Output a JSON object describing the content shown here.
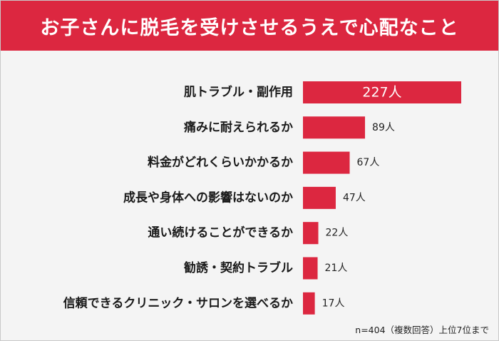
{
  "chart_data": {
    "type": "bar",
    "orientation": "horizontal",
    "title": "お子さんに脱毛を受けさせるうえで心配なこと",
    "categories": [
      "肌トラブル・副作用",
      "痛みに耐えられるか",
      "料金がどれくらいかかるか",
      "成長や身体への影響はないのか",
      "通い続けることができるか",
      "勧誘・契約トラブル",
      "信頼できるクリニック・サロンを選べるか"
    ],
    "values": [
      227,
      89,
      67,
      47,
      22,
      21,
      17
    ],
    "value_labels": [
      "227人",
      "89人",
      "67人",
      "47人",
      "22人",
      "21人",
      "17人"
    ],
    "xlim": [
      0,
      227
    ],
    "grid": false,
    "legend": "none",
    "bar_color": "#dc2740",
    "footnote": "n=404（複数回答）上位7位まで"
  }
}
